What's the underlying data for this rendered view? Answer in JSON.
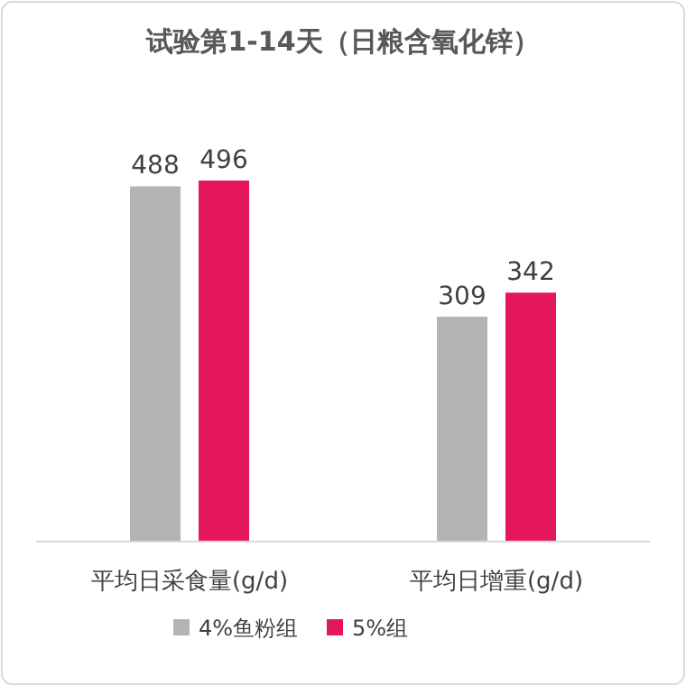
{
  "chart_data": {
    "type": "bar",
    "title": "试验第1-14天（日粮含氧化锌）",
    "categories": [
      "平均日采食量(g/d)",
      "平均日增重(g/d)"
    ],
    "series": [
      {
        "name": "4%鱼粉组",
        "color": "#b4b4b4",
        "values": [
          488,
          309
        ]
      },
      {
        "name": "5%组",
        "color": "#e5175c",
        "values": [
          496,
          342
        ]
      }
    ],
    "data_labels": true,
    "legend": "bottom"
  }
}
